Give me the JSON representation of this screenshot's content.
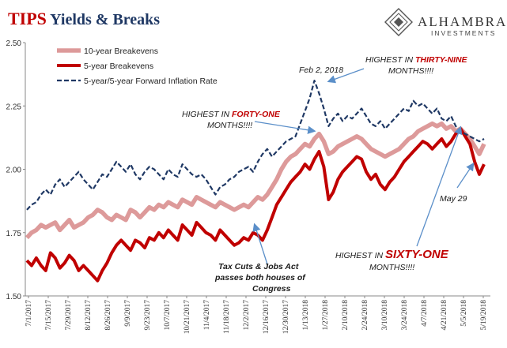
{
  "header": {
    "title_red": "TIPS",
    "title_rest": " Yields & Breaks",
    "brand_name": "ALHAMBRA",
    "brand_sub": "INVESTMENTS",
    "logo_icon": "lattice-diamond-icon"
  },
  "annotations": {
    "feb": "Feb 2, 2018",
    "h39_l1a": "HIGHEST IN ",
    "h39_l1b": "THIRTY-NINE",
    "h39_l2": "MONTHS!!!!",
    "h41_l1a": "HIGHEST IN ",
    "h41_l1b": "FORTY-ONE",
    "h41_l2": "MONTHS!!!!",
    "may": "May 29",
    "h61_l1a": "HIGHEST IN ",
    "h61_l1b": "SIXTY-ONE",
    "h61_l2": "MONTHS!!!!",
    "tax_l1": "Tax Cuts & Jobs Act",
    "tax_l2": "passes both houses of",
    "tax_l3": "Congress"
  },
  "colors": {
    "breakeven10": "#dd9a9a",
    "breakeven5": "#c00000",
    "forward5y5y": "#1f3864",
    "arrow": "#5b8fc9"
  },
  "chart_data": {
    "type": "line",
    "title": "TIPS Yields & Breaks",
    "ylim": [
      1.5,
      2.5
    ],
    "yticks": [
      "1.50",
      "1.75",
      "2.00",
      "2.25",
      "2.50"
    ],
    "legend_position": "top-left",
    "grid": false,
    "x_labels": [
      "7/1/2017",
      "7/15/2017",
      "7/29/2017",
      "8/12/2017",
      "8/26/2017",
      "9/9/2017",
      "9/23/2017",
      "10/7/2017",
      "10/21/2017",
      "11/4/2017",
      "11/18/2017",
      "12/2/2017",
      "12/16/2017",
      "12/30/2017",
      "1/13/2018",
      "1/27/2018",
      "2/10/2018",
      "2/24/2018",
      "3/10/2018",
      "3/24/2018",
      "4/7/2018",
      "4/21/2018",
      "5/5/2018",
      "5/19/2018"
    ],
    "series": [
      {
        "name": "10-year Breakevens",
        "values": [
          1.73,
          1.75,
          1.76,
          1.78,
          1.77,
          1.78,
          1.79,
          1.76,
          1.78,
          1.8,
          1.77,
          1.78,
          1.79,
          1.81,
          1.82,
          1.84,
          1.83,
          1.81,
          1.8,
          1.82,
          1.81,
          1.8,
          1.84,
          1.83,
          1.81,
          1.83,
          1.85,
          1.84,
          1.86,
          1.85,
          1.87,
          1.86,
          1.85,
          1.88,
          1.87,
          1.86,
          1.89,
          1.88,
          1.87,
          1.86,
          1.85,
          1.87,
          1.86,
          1.85,
          1.84,
          1.85,
          1.86,
          1.85,
          1.87,
          1.89,
          1.88,
          1.9,
          1.93,
          1.96,
          2.0,
          2.03,
          2.05,
          2.06,
          2.08,
          2.1,
          2.09,
          2.12,
          2.14,
          2.11,
          2.06,
          2.07,
          2.09,
          2.1,
          2.11,
          2.12,
          2.13,
          2.12,
          2.1,
          2.08,
          2.07,
          2.06,
          2.05,
          2.06,
          2.07,
          2.08,
          2.1,
          2.12,
          2.13,
          2.15,
          2.16,
          2.17,
          2.18,
          2.17,
          2.18,
          2.16,
          2.17,
          2.15,
          2.16,
          2.14,
          2.12,
          2.09,
          2.06,
          2.1
        ]
      },
      {
        "name": "5-year Breakevens",
        "values": [
          1.64,
          1.62,
          1.65,
          1.62,
          1.6,
          1.67,
          1.65,
          1.61,
          1.63,
          1.66,
          1.64,
          1.6,
          1.62,
          1.6,
          1.58,
          1.56,
          1.6,
          1.63,
          1.67,
          1.7,
          1.72,
          1.7,
          1.68,
          1.72,
          1.71,
          1.69,
          1.73,
          1.72,
          1.75,
          1.73,
          1.76,
          1.74,
          1.72,
          1.78,
          1.76,
          1.74,
          1.79,
          1.77,
          1.75,
          1.74,
          1.72,
          1.76,
          1.74,
          1.72,
          1.7,
          1.71,
          1.73,
          1.72,
          1.75,
          1.74,
          1.72,
          1.76,
          1.81,
          1.86,
          1.89,
          1.92,
          1.95,
          1.97,
          1.99,
          2.02,
          2.0,
          2.04,
          2.07,
          2.01,
          1.88,
          1.91,
          1.96,
          1.99,
          2.01,
          2.03,
          2.05,
          2.04,
          1.99,
          1.96,
          1.98,
          1.94,
          1.92,
          1.95,
          1.97,
          2.0,
          2.03,
          2.05,
          2.07,
          2.09,
          2.11,
          2.1,
          2.08,
          2.1,
          2.12,
          2.09,
          2.11,
          2.14,
          2.16,
          2.13,
          2.1,
          2.03,
          1.98,
          2.02
        ]
      },
      {
        "name": "5-year/5-year Forward Inflation Rate",
        "values": [
          1.84,
          1.86,
          1.87,
          1.9,
          1.92,
          1.9,
          1.94,
          1.96,
          1.93,
          1.95,
          1.97,
          1.99,
          1.96,
          1.94,
          1.92,
          1.95,
          1.98,
          1.97,
          2.0,
          2.03,
          2.01,
          1.99,
          2.02,
          1.98,
          1.96,
          1.99,
          2.01,
          2.0,
          1.98,
          1.96,
          2.0,
          1.98,
          1.97,
          2.02,
          2.0,
          1.98,
          1.97,
          1.98,
          1.96,
          1.93,
          1.9,
          1.93,
          1.94,
          1.96,
          1.97,
          1.99,
          2.0,
          2.01,
          1.99,
          2.03,
          2.06,
          2.08,
          2.05,
          2.07,
          2.09,
          2.11,
          2.12,
          2.13,
          2.18,
          2.23,
          2.28,
          2.35,
          2.3,
          2.24,
          2.17,
          2.2,
          2.22,
          2.19,
          2.21,
          2.2,
          2.22,
          2.24,
          2.21,
          2.18,
          2.17,
          2.19,
          2.16,
          2.18,
          2.2,
          2.22,
          2.24,
          2.23,
          2.27,
          2.25,
          2.26,
          2.24,
          2.22,
          2.24,
          2.2,
          2.19,
          2.21,
          2.17,
          2.15,
          2.14,
          2.13,
          2.12,
          2.11,
          2.12
        ]
      }
    ]
  }
}
